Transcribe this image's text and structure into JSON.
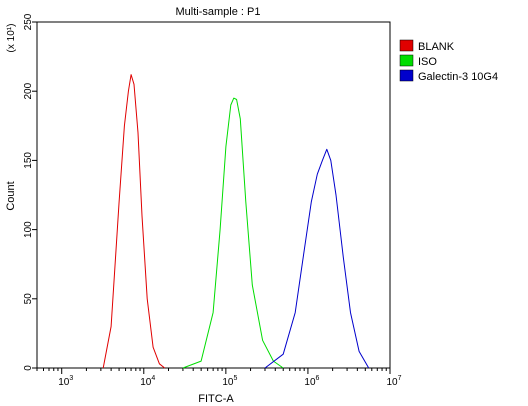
{
  "chart_data": {
    "type": "line",
    "title": "Multi-sample : P1",
    "xlabel": "FITC-A",
    "ylabel": "Count",
    "y_multiplier": "(x 10¹)",
    "x_scale": "log",
    "xlim": [
      500,
      10000000
    ],
    "ylim": [
      0,
      250
    ],
    "x_ticks": [
      {
        "value": 1000,
        "base": "10",
        "exp": "3"
      },
      {
        "value": 10000,
        "base": "10",
        "exp": "4"
      },
      {
        "value": 100000,
        "base": "10",
        "exp": "5"
      },
      {
        "value": 1000000,
        "base": "10",
        "exp": "6"
      },
      {
        "value": 10000000,
        "base": "10",
        "exp": "7"
      }
    ],
    "y_ticks": [
      "0",
      "50",
      "100",
      "150",
      "200",
      "250"
    ],
    "legend_position": "right",
    "series": [
      {
        "name": "BLANK",
        "color": "#e00000",
        "x": [
          3200,
          4000,
          5000,
          5800,
          6500,
          7000,
          7600,
          8500,
          9500,
          11000,
          13000,
          15500,
          18000
        ],
        "y": [
          0,
          30,
          120,
          175,
          200,
          212,
          205,
          170,
          110,
          50,
          15,
          3,
          0
        ]
      },
      {
        "name": "ISO",
        "color": "#00dd00",
        "x": [
          30000,
          50000,
          70000,
          85000,
          100000,
          115000,
          125000,
          135000,
          150000,
          175000,
          210000,
          280000,
          380000,
          500000
        ],
        "y": [
          0,
          5,
          40,
          100,
          160,
          190,
          195,
          194,
          180,
          120,
          60,
          20,
          5,
          0
        ]
      },
      {
        "name": "Galectin-3 10G4",
        "color": "#0000cc",
        "x": [
          300000,
          500000,
          700000,
          900000,
          1100000,
          1300000,
          1500000,
          1700000,
          1900000,
          2200000,
          2700000,
          3300000,
          4200000,
          5500000
        ],
        "y": [
          0,
          10,
          40,
          85,
          120,
          140,
          150,
          158,
          150,
          125,
          80,
          40,
          12,
          0
        ]
      }
    ]
  }
}
